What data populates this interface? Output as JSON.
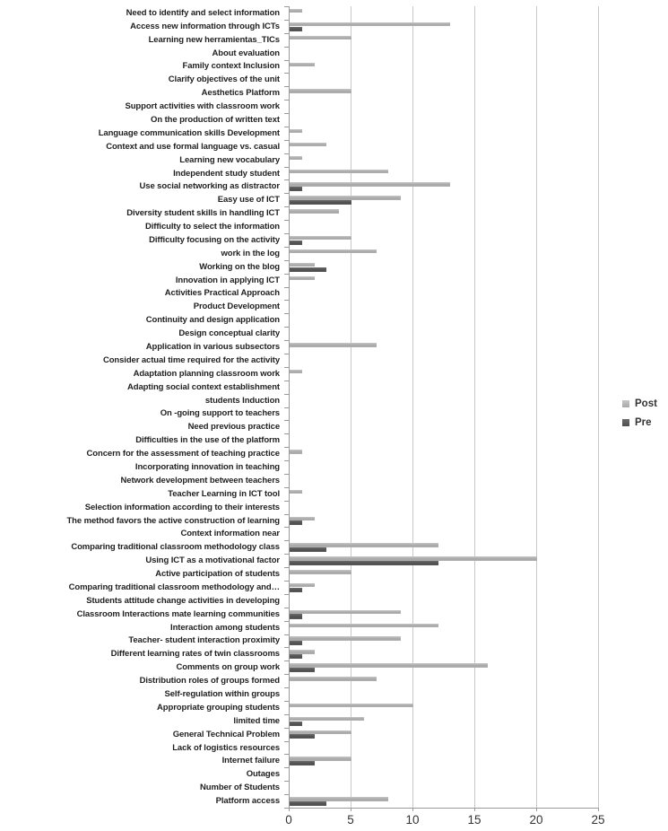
{
  "chart_data": {
    "type": "bar",
    "orientation": "horizontal",
    "title": "",
    "xlabel": "",
    "ylabel": "",
    "xlim": [
      0,
      25
    ],
    "xticks": [
      "0",
      "5",
      "10",
      "15",
      "20",
      "25"
    ],
    "grid": true,
    "legend_position": "right-middle",
    "categories": [
      "Need to identify and select information",
      "Access new information through ICTs",
      "Learning new herramientas_TICs",
      "About evaluation",
      "Family context Inclusion",
      "Clarify objectives of the unit",
      "Aesthetics Platform",
      "Support activities with classroom work",
      "On the production of written text",
      "Language communication skills Development",
      "Context and use formal language vs. casual",
      "Learning new vocabulary",
      "Independent study student",
      "Use social networking as distractor",
      "Easy use of ICT",
      "Diversity student skills in handling ICT",
      "Difficulty to select the information",
      "Difficulty focusing on the activity",
      "work in the log",
      "Working on the blog",
      "Innovation in applying ICT",
      "Activities Practical Approach",
      "Product Development",
      "Continuity and design application",
      "Design conceptual clarity",
      "Application in various subsectors",
      "Consider actual time required for the activity",
      "Adaptation planning classroom work",
      "Adapting social context establishment",
      "students Induction",
      "On -going support to teachers",
      "Need previous practice",
      "Difficulties in the use of the platform",
      "Concern for the assessment of teaching practice",
      "Incorporating innovation in teaching",
      "Network development between teachers",
      "Teacher Learning in ICT tool",
      "Selection information according to their interests",
      "The method favors the active construction of learning",
      "Context information near",
      "Comparing traditional classroom methodology class",
      "Using ICT as a motivational factor",
      "Active participation of students",
      "Comparing traditional classroom methodology and…",
      "Students attitude change activities in developing",
      "Classroom Interactions mate learning communities",
      "Interaction among students",
      "Teacher- student interaction proximity",
      "Different learning rates of twin classrooms",
      "Comments on group work",
      "Distribution roles of groups formed",
      "Self-regulation within groups",
      "Appropriate grouping students",
      "limited time",
      "General Technical Problem",
      "Lack of logistics resources",
      "Internet failure",
      "Outages",
      "Number of Students",
      "Platform access"
    ],
    "series": [
      {
        "name": "Post",
        "color": "#ACACAC",
        "values": [
          1,
          13,
          5,
          0,
          2,
          0,
          5,
          0,
          0,
          1,
          3,
          1,
          8,
          13,
          9,
          4,
          0,
          5,
          7,
          2,
          2,
          0,
          0,
          0,
          0,
          7,
          0,
          1,
          0,
          0,
          0,
          0,
          0,
          1,
          0,
          0,
          1,
          0,
          2,
          0,
          12,
          20,
          5,
          2,
          0,
          9,
          12,
          9,
          2,
          16,
          7,
          0,
          10,
          6,
          5,
          0,
          5,
          0,
          0,
          8
        ]
      },
      {
        "name": "Pre",
        "color": "#595959",
        "values": [
          0,
          1,
          0,
          0,
          0,
          0,
          0,
          0,
          0,
          0,
          0,
          0,
          0,
          1,
          5,
          0,
          0,
          1,
          0,
          3,
          0,
          0,
          0,
          0,
          0,
          0,
          0,
          0,
          0,
          0,
          0,
          0,
          0,
          0,
          0,
          0,
          0,
          0,
          1,
          0,
          3,
          12,
          0,
          1,
          0,
          1,
          0,
          1,
          1,
          2,
          0,
          0,
          0,
          1,
          2,
          0,
          2,
          0,
          0,
          3
        ]
      }
    ]
  }
}
